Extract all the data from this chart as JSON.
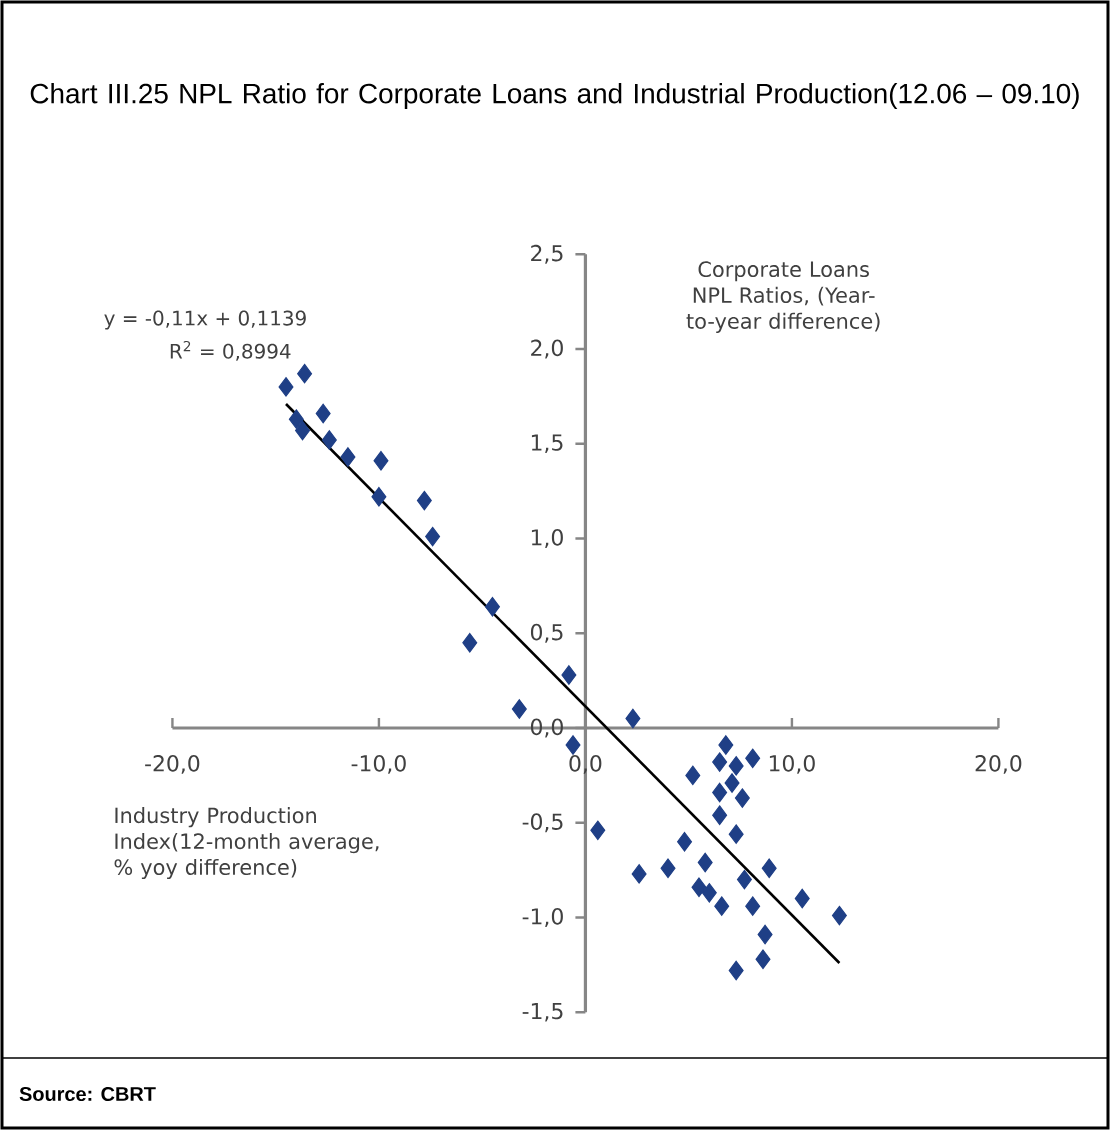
{
  "chart_data": {
    "type": "scatter",
    "title": "Chart III.25 NPL Ratio for Corporate Loans and Industrial Production(12.06 – 09.10)",
    "xlabel": "Industry Production Index(12-month average, % yoy difference)",
    "ylabel": "Corporate Loans NPL Ratios, (Year-to-year difference)",
    "annotations": [
      "y = -0,11x + 0,1139",
      "R$^{2}$ = 0,8994",
      "Source: CBRT"
    ],
    "xlim": [
      -20,
      20
    ],
    "ylim": [
      -1.5,
      2.5
    ],
    "xticks": [
      {
        "value": -20,
        "label": "-20,0"
      },
      {
        "value": -10,
        "label": "-10,0"
      },
      {
        "value": 0,
        "label": "0,0"
      },
      {
        "value": 10,
        "label": "10,0"
      },
      {
        "value": 20,
        "label": "20,0"
      }
    ],
    "yticks": [
      {
        "value": -1.5,
        "label": "-1,5"
      },
      {
        "value": -1,
        "label": "-1,0"
      },
      {
        "value": -0.5,
        "label": "-0,5"
      },
      {
        "value": 0,
        "label": "0,0"
      },
      {
        "value": 0.5,
        "label": "0,5"
      },
      {
        "value": 1,
        "label": "1,0"
      },
      {
        "value": 1.5,
        "label": "1,5"
      },
      {
        "value": 2,
        "label": "2,0"
      },
      {
        "value": 2.5,
        "label": "2,5"
      }
    ],
    "series": [
      {
        "marker": "diamond",
        "color": "#1f3f86",
        "x": [
          -14.5,
          -13.6,
          -14.0,
          -13.7,
          -12.7,
          -12.4,
          -11.5,
          -9.9,
          -10.0,
          -7.8,
          -7.4,
          -4.5,
          -5.6,
          -3.2,
          -0.8,
          -0.6,
          2.3,
          0.6,
          2.6,
          4.0,
          4.8,
          5.2,
          5.8,
          5.5,
          6.0,
          6.6,
          6.8,
          6.5,
          7.3,
          8.1,
          6.5,
          7.1,
          7.6,
          6.5,
          7.3,
          7.7,
          8.9,
          8.1,
          7.3,
          8.6,
          8.7,
          10.5,
          12.3
        ],
        "values": [
          1.8,
          1.87,
          1.63,
          1.57,
          1.66,
          1.52,
          1.43,
          1.41,
          1.22,
          1.2,
          1.01,
          0.64,
          0.45,
          0.1,
          0.28,
          -0.09,
          0.05,
          -0.54,
          -0.77,
          -0.74,
          -0.6,
          -0.25,
          -0.71,
          -0.84,
          -0.87,
          -0.94,
          -0.09,
          -0.18,
          -0.2,
          -0.16,
          -0.34,
          -0.29,
          -0.37,
          -0.46,
          -0.56,
          -0.8,
          -0.74,
          -0.94,
          -1.28,
          -1.22,
          -1.09,
          -0.9,
          -0.99
        ]
      },
      {
        "type": "line",
        "color": "#000000",
        "x": [
          -14.5,
          12.3
        ],
        "values": [
          1.71,
          -1.24
        ]
      }
    ]
  }
}
